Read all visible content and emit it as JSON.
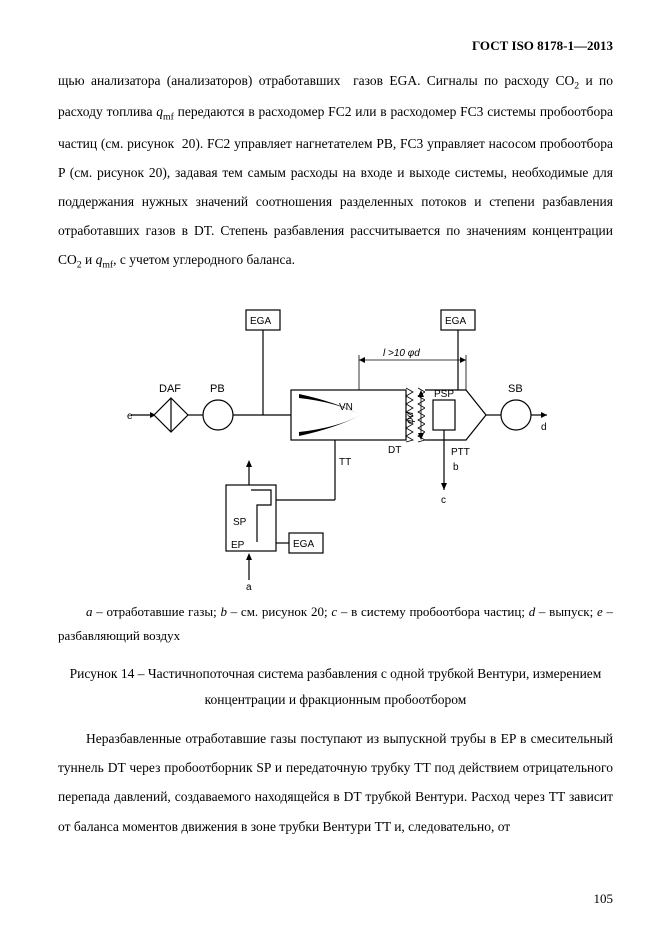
{
  "header": "ГОСТ ISO 8178-1—2013",
  "para_top_html": "щью анализатора (анализаторов) отработавших&nbsp;&nbsp;газов EGA. Сигналы по расходу CO<sub>2</sub> и по расходу топлива <i>q</i><sub>mf</sub> передаются в расходомер FC2 или в расходомер FC3 системы пробоотбора частиц (см. рисунок&nbsp;&nbsp;20). FC2 управляет нагнетателем PB, FC3 управляет насосом пробоотбора P (см. рисунок 20), задавая тем самым расходы на входе и выходе системы, необходимые для поддержания нужных значений соотношения разделенных потоков и степени разбавления отработавших газов в DT. Степень разбавления рассчитывается по значениям концентрации CO<sub>2</sub> и <i>q</i><sub>mf</sub>, с учетом углеродного баланса.",
  "legend_html": "<span class=\"ital\">a</span> – отработавшие газы; <span class=\"ital\">b</span> – см. рисунок 20; <span class=\"ital\">c</span> – в систему пробоотбора частиц; <span class=\"ital\">d</span> – выпуск; <span class=\"ital\">e</span> – разбавляющий воздух",
  "caption_line1": "Рисунок 14 – Частичнопоточная система разбавления с одной трубкой Вентури, измерением",
  "caption_line2": "концентрации и фракционным пробоотбором",
  "para_bottom_html": "Неразбавленные отработавшие газы поступают из выпускной трубы в EP в смесительный туннель DT через пробоотборник SP и передаточную трубку TT под действием отрицательного перепада давлений, создаваемого находящейся в DT трубкой Вентури. Расход через TT зависит от баланса моментов движения в зоне трубки Вентури TT и, следовательно, от",
  "page_number": "105",
  "diagram": {
    "labels": {
      "ega": "EGA",
      "daf": "DAF",
      "pb": "PB",
      "vn": "VN",
      "dt": "DT",
      "sb": "SB",
      "psp": "PSP",
      "ptt": "PTT",
      "tt": "TT",
      "sp": "SP",
      "ep": "EP",
      "dim": "l >10 φd",
      "phi_d": "φd",
      "a": "a",
      "b": "b",
      "c": "c",
      "d": "d",
      "e": "e"
    },
    "colors": {
      "stroke": "#000000",
      "fill": "#ffffff",
      "venturi_fill": "#000000",
      "background": "#ffffff"
    },
    "stroke_width": 1.2,
    "thin_stroke": 0.8
  }
}
